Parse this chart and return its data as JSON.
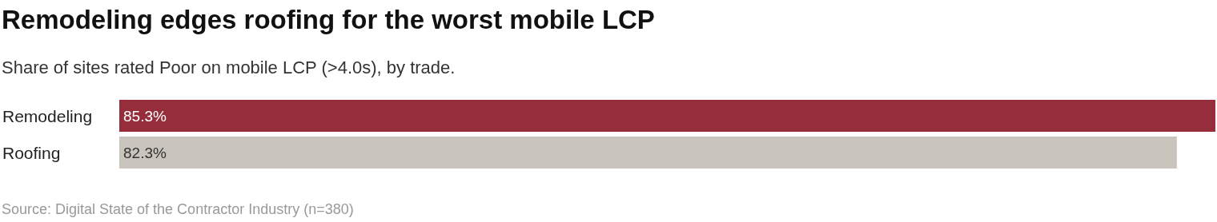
{
  "chart_data": {
    "type": "bar",
    "orientation": "horizontal",
    "title": "Remodeling edges roofing for the worst mobile LCP",
    "subtitle": "Share of sites rated Poor on mobile LCP (>4.0s), by trade.",
    "categories": [
      "Remodeling",
      "Roofing"
    ],
    "values": [
      85.3,
      82.3
    ],
    "colors": [
      "#962d3a",
      "#c9c5bd"
    ],
    "value_labels": [
      "85.3%",
      "82.3%"
    ],
    "annotations": [
      "Source: Digital State of the Contractor Industry (n=380)"
    ]
  }
}
